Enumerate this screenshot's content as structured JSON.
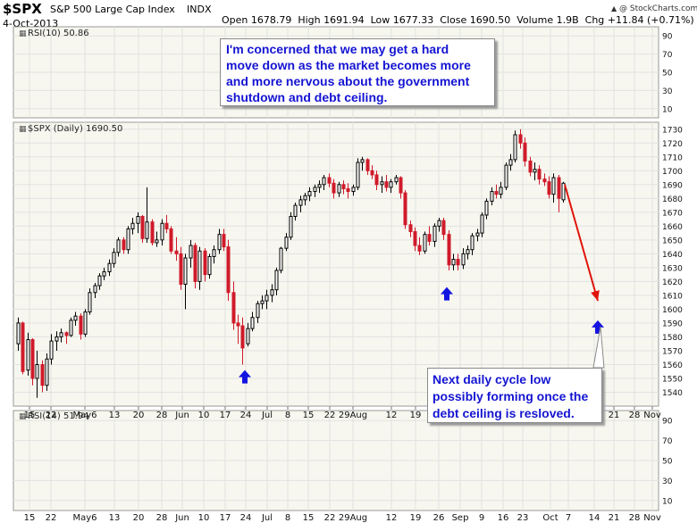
{
  "header": {
    "symbol": "$SPX",
    "name": "S&P 500 Large Cap Index",
    "exchange": "INDX",
    "date": "4-Oct-2013",
    "ohlc": "Open 1678.79  High 1691.94  Low 1677.33  Close 1690.50  Volume 1.9B  Chg +11.84 (+0.71%)",
    "credit": "@ StockCharts.com",
    "credit_icon": "up-triangle-icon"
  },
  "panels": {
    "rsi_top_label": "RSI(10) 50.86",
    "price_label": "$SPX (Daily) 1690.50",
    "rsi_bottom_label": "RSI(14) 51.94"
  },
  "notes": {
    "top": [
      "I'm concerned that we may get a hard",
      "move down as the market becomes more",
      "and more nervous about the government",
      "shutdown and debt ceiling."
    ],
    "bottom": [
      "Next daily cycle low",
      "possibly forming once the",
      "debt ceiling is resloved."
    ]
  },
  "colors": {
    "up": "#000000",
    "down": "#d01a2a",
    "grid": "#e2e2e2",
    "panel_bg": "#f7f7ef",
    "note_text": "#1414d2",
    "arrow_blue": "#1414e0",
    "arrow_red": "#e0140a"
  },
  "chart_data": {
    "type": "candlestick",
    "title": "$SPX (Daily) 1690.50",
    "date_range": [
      "2013-04-15",
      "2013-10-04"
    ],
    "price_axis": {
      "min": 1530,
      "max": 1735,
      "ticks": [
        1540,
        1550,
        1560,
        1570,
        1580,
        1590,
        1600,
        1610,
        1620,
        1630,
        1640,
        1650,
        1660,
        1670,
        1680,
        1690,
        1700,
        1710,
        1720,
        1730
      ]
    },
    "rsi_axis_ticks": [
      10,
      30,
      50,
      70,
      90
    ],
    "x_tick_labels": [
      "15",
      "22",
      "May6",
      "13",
      "20",
      "28",
      "Jun",
      "10",
      "17",
      "24",
      "Jul",
      "8",
      "15",
      "22",
      "29Aug",
      "12",
      "19",
      "26",
      "Sep",
      "9",
      "16",
      "23",
      "Oct",
      "7",
      "14",
      "21",
      "28",
      "Nov"
    ],
    "candles": [
      {
        "o": 1575,
        "h": 1594,
        "l": 1570,
        "c": 1590
      },
      {
        "o": 1590,
        "h": 1591,
        "l": 1553,
        "c": 1555
      },
      {
        "o": 1556,
        "h": 1583,
        "l": 1552,
        "c": 1578
      },
      {
        "o": 1578,
        "h": 1579,
        "l": 1545,
        "c": 1550
      },
      {
        "o": 1550,
        "h": 1570,
        "l": 1536,
        "c": 1560
      },
      {
        "o": 1560,
        "h": 1563,
        "l": 1540,
        "c": 1545
      },
      {
        "o": 1545,
        "h": 1568,
        "l": 1541,
        "c": 1564
      },
      {
        "o": 1564,
        "h": 1582,
        "l": 1560,
        "c": 1577
      },
      {
        "o": 1577,
        "h": 1584,
        "l": 1570,
        "c": 1580
      },
      {
        "o": 1580,
        "h": 1586,
        "l": 1576,
        "c": 1583
      },
      {
        "o": 1583,
        "h": 1584,
        "l": 1575,
        "c": 1581
      },
      {
        "o": 1581,
        "h": 1594,
        "l": 1580,
        "c": 1592
      },
      {
        "o": 1592,
        "h": 1598,
        "l": 1588,
        "c": 1595
      },
      {
        "o": 1595,
        "h": 1597,
        "l": 1578,
        "c": 1582
      },
      {
        "o": 1582,
        "h": 1600,
        "l": 1580,
        "c": 1598
      },
      {
        "o": 1598,
        "h": 1615,
        "l": 1596,
        "c": 1612
      },
      {
        "o": 1612,
        "h": 1619,
        "l": 1608,
        "c": 1617
      },
      {
        "o": 1617,
        "h": 1626,
        "l": 1614,
        "c": 1624
      },
      {
        "o": 1624,
        "h": 1630,
        "l": 1621,
        "c": 1627
      },
      {
        "o": 1627,
        "h": 1636,
        "l": 1624,
        "c": 1633
      },
      {
        "o": 1633,
        "h": 1644,
        "l": 1630,
        "c": 1641
      },
      {
        "o": 1641,
        "h": 1652,
        "l": 1638,
        "c": 1650
      },
      {
        "o": 1650,
        "h": 1652,
        "l": 1640,
        "c": 1643
      },
      {
        "o": 1643,
        "h": 1660,
        "l": 1640,
        "c": 1658
      },
      {
        "o": 1658,
        "h": 1666,
        "l": 1654,
        "c": 1662
      },
      {
        "o": 1662,
        "h": 1670,
        "l": 1655,
        "c": 1667
      },
      {
        "o": 1667,
        "h": 1668,
        "l": 1648,
        "c": 1651
      },
      {
        "o": 1651,
        "h": 1688,
        "l": 1648,
        "c": 1663
      },
      {
        "o": 1663,
        "h": 1665,
        "l": 1646,
        "c": 1648
      },
      {
        "o": 1648,
        "h": 1656,
        "l": 1645,
        "c": 1650
      },
      {
        "o": 1650,
        "h": 1665,
        "l": 1646,
        "c": 1662
      },
      {
        "o": 1662,
        "h": 1668,
        "l": 1655,
        "c": 1658
      },
      {
        "o": 1658,
        "h": 1660,
        "l": 1640,
        "c": 1642
      },
      {
        "o": 1642,
        "h": 1652,
        "l": 1635,
        "c": 1640
      },
      {
        "o": 1640,
        "h": 1645,
        "l": 1614,
        "c": 1618
      },
      {
        "o": 1618,
        "h": 1640,
        "l": 1600,
        "c": 1637
      },
      {
        "o": 1637,
        "h": 1650,
        "l": 1630,
        "c": 1646
      },
      {
        "o": 1646,
        "h": 1648,
        "l": 1615,
        "c": 1620
      },
      {
        "o": 1620,
        "h": 1645,
        "l": 1614,
        "c": 1642
      },
      {
        "o": 1642,
        "h": 1644,
        "l": 1620,
        "c": 1625
      },
      {
        "o": 1625,
        "h": 1640,
        "l": 1622,
        "c": 1638
      },
      {
        "o": 1638,
        "h": 1646,
        "l": 1633,
        "c": 1643
      },
      {
        "o": 1643,
        "h": 1658,
        "l": 1640,
        "c": 1654
      },
      {
        "o": 1654,
        "h": 1658,
        "l": 1642,
        "c": 1645
      },
      {
        "o": 1645,
        "h": 1650,
        "l": 1606,
        "c": 1612
      },
      {
        "o": 1612,
        "h": 1620,
        "l": 1585,
        "c": 1590
      },
      {
        "o": 1590,
        "h": 1596,
        "l": 1575,
        "c": 1588
      },
      {
        "o": 1588,
        "h": 1594,
        "l": 1560,
        "c": 1572
      },
      {
        "o": 1575,
        "h": 1590,
        "l": 1573,
        "c": 1586
      },
      {
        "o": 1586,
        "h": 1598,
        "l": 1584,
        "c": 1594
      },
      {
        "o": 1594,
        "h": 1606,
        "l": 1590,
        "c": 1604
      },
      {
        "o": 1604,
        "h": 1610,
        "l": 1600,
        "c": 1606
      },
      {
        "o": 1606,
        "h": 1614,
        "l": 1600,
        "c": 1610
      },
      {
        "o": 1610,
        "h": 1618,
        "l": 1605,
        "c": 1614
      },
      {
        "o": 1614,
        "h": 1630,
        "l": 1610,
        "c": 1628
      },
      {
        "o": 1628,
        "h": 1645,
        "l": 1626,
        "c": 1644
      },
      {
        "o": 1644,
        "h": 1655,
        "l": 1642,
        "c": 1652
      },
      {
        "o": 1652,
        "h": 1670,
        "l": 1650,
        "c": 1667
      },
      {
        "o": 1667,
        "h": 1677,
        "l": 1664,
        "c": 1675
      },
      {
        "o": 1675,
        "h": 1682,
        "l": 1670,
        "c": 1679
      },
      {
        "o": 1679,
        "h": 1684,
        "l": 1675,
        "c": 1682
      },
      {
        "o": 1682,
        "h": 1688,
        "l": 1678,
        "c": 1685
      },
      {
        "o": 1685,
        "h": 1690,
        "l": 1681,
        "c": 1688
      },
      {
        "o": 1688,
        "h": 1693,
        "l": 1684,
        "c": 1690
      },
      {
        "o": 1690,
        "h": 1697,
        "l": 1686,
        "c": 1695
      },
      {
        "o": 1695,
        "h": 1698,
        "l": 1688,
        "c": 1691
      },
      {
        "o": 1691,
        "h": 1694,
        "l": 1680,
        "c": 1684
      },
      {
        "o": 1684,
        "h": 1692,
        "l": 1681,
        "c": 1690
      },
      {
        "o": 1690,
        "h": 1693,
        "l": 1683,
        "c": 1687
      },
      {
        "o": 1687,
        "h": 1691,
        "l": 1680,
        "c": 1685
      },
      {
        "o": 1685,
        "h": 1690,
        "l": 1682,
        "c": 1688
      },
      {
        "o": 1688,
        "h": 1709,
        "l": 1686,
        "c": 1706
      },
      {
        "o": 1706,
        "h": 1710,
        "l": 1700,
        "c": 1708
      },
      {
        "o": 1708,
        "h": 1709,
        "l": 1697,
        "c": 1700
      },
      {
        "o": 1700,
        "h": 1704,
        "l": 1694,
        "c": 1697
      },
      {
        "o": 1697,
        "h": 1700,
        "l": 1686,
        "c": 1690
      },
      {
        "o": 1690,
        "h": 1696,
        "l": 1684,
        "c": 1692
      },
      {
        "o": 1692,
        "h": 1697,
        "l": 1685,
        "c": 1688
      },
      {
        "o": 1688,
        "h": 1694,
        "l": 1684,
        "c": 1692
      },
      {
        "o": 1692,
        "h": 1697,
        "l": 1690,
        "c": 1695
      },
      {
        "o": 1695,
        "h": 1696,
        "l": 1680,
        "c": 1684
      },
      {
        "o": 1684,
        "h": 1686,
        "l": 1658,
        "c": 1661
      },
      {
        "o": 1661,
        "h": 1664,
        "l": 1652,
        "c": 1656
      },
      {
        "o": 1656,
        "h": 1659,
        "l": 1642,
        "c": 1646
      },
      {
        "o": 1646,
        "h": 1652,
        "l": 1639,
        "c": 1642
      },
      {
        "o": 1642,
        "h": 1656,
        "l": 1640,
        "c": 1654
      },
      {
        "o": 1654,
        "h": 1660,
        "l": 1646,
        "c": 1649
      },
      {
        "o": 1649,
        "h": 1662,
        "l": 1645,
        "c": 1660
      },
      {
        "o": 1660,
        "h": 1666,
        "l": 1656,
        "c": 1664
      },
      {
        "o": 1664,
        "h": 1666,
        "l": 1650,
        "c": 1654
      },
      {
        "o": 1654,
        "h": 1657,
        "l": 1628,
        "c": 1632
      },
      {
        "o": 1632,
        "h": 1640,
        "l": 1628,
        "c": 1636
      },
      {
        "o": 1636,
        "h": 1640,
        "l": 1628,
        "c": 1632
      },
      {
        "o": 1632,
        "h": 1644,
        "l": 1629,
        "c": 1640
      },
      {
        "o": 1640,
        "h": 1646,
        "l": 1636,
        "c": 1643
      },
      {
        "o": 1643,
        "h": 1655,
        "l": 1639,
        "c": 1653
      },
      {
        "o": 1653,
        "h": 1658,
        "l": 1649,
        "c": 1655
      },
      {
        "o": 1655,
        "h": 1670,
        "l": 1652,
        "c": 1668
      },
      {
        "o": 1668,
        "h": 1680,
        "l": 1665,
        "c": 1678
      },
      {
        "o": 1678,
        "h": 1688,
        "l": 1675,
        "c": 1685
      },
      {
        "o": 1685,
        "h": 1690,
        "l": 1680,
        "c": 1683
      },
      {
        "o": 1683,
        "h": 1692,
        "l": 1680,
        "c": 1688
      },
      {
        "o": 1688,
        "h": 1706,
        "l": 1686,
        "c": 1704
      },
      {
        "o": 1704,
        "h": 1712,
        "l": 1700,
        "c": 1708
      },
      {
        "o": 1708,
        "h": 1729,
        "l": 1706,
        "c": 1726
      },
      {
        "o": 1726,
        "h": 1730,
        "l": 1716,
        "c": 1720
      },
      {
        "o": 1720,
        "h": 1724,
        "l": 1703,
        "c": 1707
      },
      {
        "o": 1707,
        "h": 1710,
        "l": 1696,
        "c": 1699
      },
      {
        "o": 1699,
        "h": 1706,
        "l": 1693,
        "c": 1701
      },
      {
        "o": 1701,
        "h": 1704,
        "l": 1690,
        "c": 1694
      },
      {
        "o": 1694,
        "h": 1698,
        "l": 1689,
        "c": 1692
      },
      {
        "o": 1692,
        "h": 1696,
        "l": 1680,
        "c": 1683
      },
      {
        "o": 1683,
        "h": 1698,
        "l": 1677,
        "c": 1695
      },
      {
        "o": 1695,
        "h": 1697,
        "l": 1670,
        "c": 1680
      },
      {
        "o": 1679,
        "h": 1692,
        "l": 1677,
        "c": 1691
      }
    ],
    "annotations": [
      {
        "type": "projection-arrow",
        "from_price": 1691,
        "to_price": 1606,
        "color": "red"
      },
      {
        "type": "cycle-low-marker",
        "price": 1556,
        "color": "blue"
      },
      {
        "type": "cycle-low-marker",
        "price": 1616,
        "color": "blue"
      },
      {
        "type": "cycle-low-marker",
        "price": 1592,
        "color": "blue"
      }
    ]
  }
}
